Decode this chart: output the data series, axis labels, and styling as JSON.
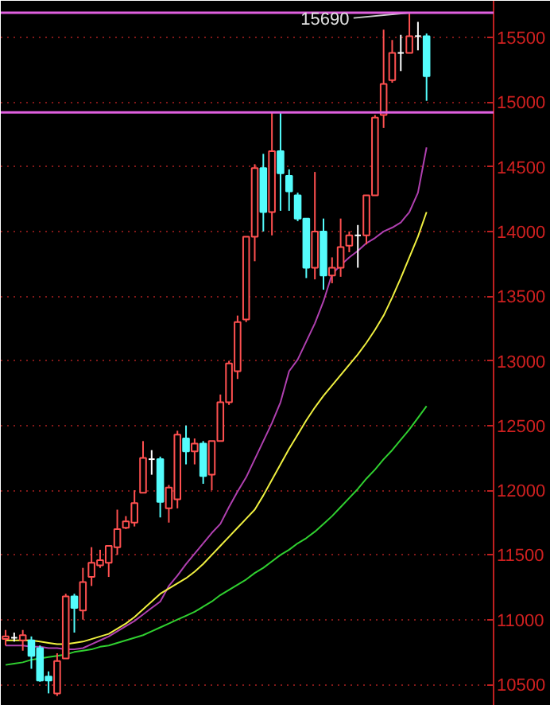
{
  "chart_data": {
    "type": "candlestick",
    "categories": [
      null,
      null,
      null,
      null,
      null,
      null,
      null,
      null,
      null,
      null,
      null,
      null,
      null,
      null,
      null,
      null,
      null,
      null,
      null,
      null,
      null,
      null,
      null,
      null,
      null,
      null,
      null,
      null,
      null,
      null,
      null,
      null,
      null,
      null,
      null,
      null,
      null,
      null,
      null,
      null,
      null,
      null,
      null,
      null,
      null,
      null,
      null,
      null,
      null,
      null
    ],
    "ohlc": [
      [
        10850,
        10920,
        10800,
        10870
      ],
      [
        10860,
        10900,
        10830,
        10860
      ],
      [
        10840,
        10920,
        10760,
        10880
      ],
      [
        10840,
        10870,
        10620,
        10720
      ],
      [
        10780,
        10800,
        10520,
        10530
      ],
      [
        10560,
        10600,
        10430,
        10530
      ],
      [
        10430,
        10740,
        10410,
        10680
      ],
      [
        10700,
        11200,
        10700,
        11180
      ],
      [
        11180,
        11200,
        10900,
        11090
      ],
      [
        11070,
        11400,
        11000,
        11290
      ],
      [
        11330,
        11560,
        11260,
        11440
      ],
      [
        11420,
        11540,
        11400,
        11460
      ],
      [
        11440,
        11570,
        11330,
        11570
      ],
      [
        11560,
        11850,
        11500,
        11700
      ],
      [
        11710,
        11800,
        11700,
        11760
      ],
      [
        11750,
        12000,
        11720,
        11900
      ],
      [
        11980,
        12380,
        11980,
        12250
      ],
      [
        12240,
        12310,
        12120,
        12240
      ],
      [
        12240,
        12260,
        11790,
        11910
      ],
      [
        11860,
        12040,
        11750,
        12020
      ],
      [
        11930,
        12460,
        11860,
        12430
      ],
      [
        12400,
        12500,
        12200,
        12300
      ],
      [
        12300,
        12400,
        12200,
        12360
      ],
      [
        12360,
        12380,
        12050,
        12110
      ],
      [
        12120,
        12380,
        12000,
        12380
      ],
      [
        12380,
        12740,
        12380,
        12680
      ],
      [
        12680,
        13000,
        12660,
        12980
      ],
      [
        12920,
        13350,
        12860,
        13300
      ],
      [
        13320,
        13960,
        13300,
        13960
      ],
      [
        13960,
        14520,
        13770,
        14490
      ],
      [
        14490,
        14600,
        14000,
        14150
      ],
      [
        14150,
        14920,
        13970,
        14620
      ],
      [
        14620,
        14920,
        14160,
        14450
      ],
      [
        14430,
        14480,
        14160,
        14310
      ],
      [
        14280,
        14300,
        14080,
        14100
      ],
      [
        14100,
        14100,
        13640,
        13720
      ],
      [
        13720,
        14460,
        13630,
        14000
      ],
      [
        14000,
        14100,
        13550,
        13660
      ],
      [
        13660,
        13800,
        13600,
        13720
      ],
      [
        13720,
        14100,
        13650,
        13880
      ],
      [
        13890,
        14000,
        13840,
        13970
      ],
      [
        13970,
        14050,
        13720,
        13970
      ],
      [
        13970,
        14280,
        13900,
        14280
      ],
      [
        14280,
        14900,
        14280,
        14880
      ],
      [
        14900,
        15560,
        14800,
        15140
      ],
      [
        15170,
        15480,
        15150,
        15380
      ],
      [
        15380,
        15520,
        15240,
        15380
      ],
      [
        15380,
        15690,
        15380,
        15510
      ],
      [
        15510,
        15620,
        15400,
        15510
      ],
      [
        15510,
        15530,
        15010,
        15200
      ]
    ],
    "colors": [
      "#ff5050",
      "#ffffff",
      "#ff5050",
      "#54fcfc",
      "#54fcfc",
      "#54fcfc",
      "#ff5050",
      "#ff5050",
      "#54fcfc",
      "#ff5050",
      "#ff5050",
      "#ff5050",
      "#ff5050",
      "#ff5050",
      "#ff5050",
      "#ff5050",
      "#ff5050",
      "#ffffff",
      "#54fcfc",
      "#ff5050",
      "#ff5050",
      "#54fcfc",
      "#ff5050",
      "#54fcfc",
      "#ff5050",
      "#ff5050",
      "#ff5050",
      "#ff5050",
      "#ff5050",
      "#ff5050",
      "#54fcfc",
      "#ff5050",
      "#54fcfc",
      "#54fcfc",
      "#54fcfc",
      "#54fcfc",
      "#ff5050",
      "#54fcfc",
      "#ff5050",
      "#ff5050",
      "#ff5050",
      "#ffffff",
      "#ff5050",
      "#ff5050",
      "#ff5050",
      "#ff5050",
      "#ffffff",
      "#ff5050",
      "#ffffff",
      "#54fcfc"
    ],
    "series": [
      {
        "type": "line",
        "color": "#b040b0",
        "values": [
          10800,
          10800,
          10800,
          10790,
          10790,
          10780,
          10780,
          10770,
          10770,
          10780,
          10810,
          10840,
          10870,
          10910,
          10950,
          10990,
          11040,
          11090,
          11140,
          11260,
          11340,
          11430,
          11510,
          11590,
          11670,
          11740,
          11870,
          11990,
          12100,
          12240,
          12380,
          12520,
          12680,
          12920,
          13010,
          13150,
          13290,
          13460,
          13670,
          13740,
          13800,
          13850,
          13910,
          13950,
          14000,
          14030,
          14070,
          14150,
          14300,
          14650
        ]
      },
      {
        "type": "line",
        "color": "#f0f040",
        "values": [
          10840,
          10840,
          10840,
          10840,
          10830,
          10820,
          10810,
          10810,
          10820,
          10830,
          10850,
          10870,
          10890,
          10930,
          10970,
          11020,
          11080,
          11140,
          11200,
          11240,
          11280,
          11320,
          11370,
          11430,
          11500,
          11570,
          11640,
          11710,
          11780,
          11850,
          11960,
          12080,
          12200,
          12320,
          12430,
          12540,
          12640,
          12730,
          12810,
          12890,
          12970,
          13050,
          13140,
          13240,
          13350,
          13490,
          13640,
          13800,
          13960,
          14150
        ]
      },
      {
        "type": "line",
        "color": "#30d030",
        "values": [
          10650,
          10660,
          10670,
          10690,
          10700,
          10710,
          10720,
          10730,
          10750,
          10760,
          10770,
          10790,
          10800,
          10820,
          10840,
          10860,
          10880,
          10910,
          10940,
          10970,
          11000,
          11030,
          11060,
          11100,
          11140,
          11190,
          11230,
          11270,
          11310,
          11360,
          11400,
          11450,
          11500,
          11540,
          11590,
          11630,
          11680,
          11740,
          11800,
          11870,
          11940,
          12010,
          12090,
          12160,
          12240,
          12310,
          12390,
          12470,
          12560,
          12650
        ]
      }
    ],
    "ylim": [
      10334,
      15783
    ],
    "yticks": [
      10500,
      11000,
      11500,
      12000,
      12500,
      13000,
      13500,
      14000,
      14500,
      15000,
      15500
    ],
    "tick_labels": "y",
    "grid": "y",
    "ref_lines": [
      {
        "axis": "y",
        "value": 15690,
        "color": "#e060e0"
      },
      {
        "axis": "y",
        "value": 14920,
        "color": "#e060e0"
      }
    ],
    "annotations": [
      {
        "text": "15690",
        "y": 15690
      }
    ]
  }
}
